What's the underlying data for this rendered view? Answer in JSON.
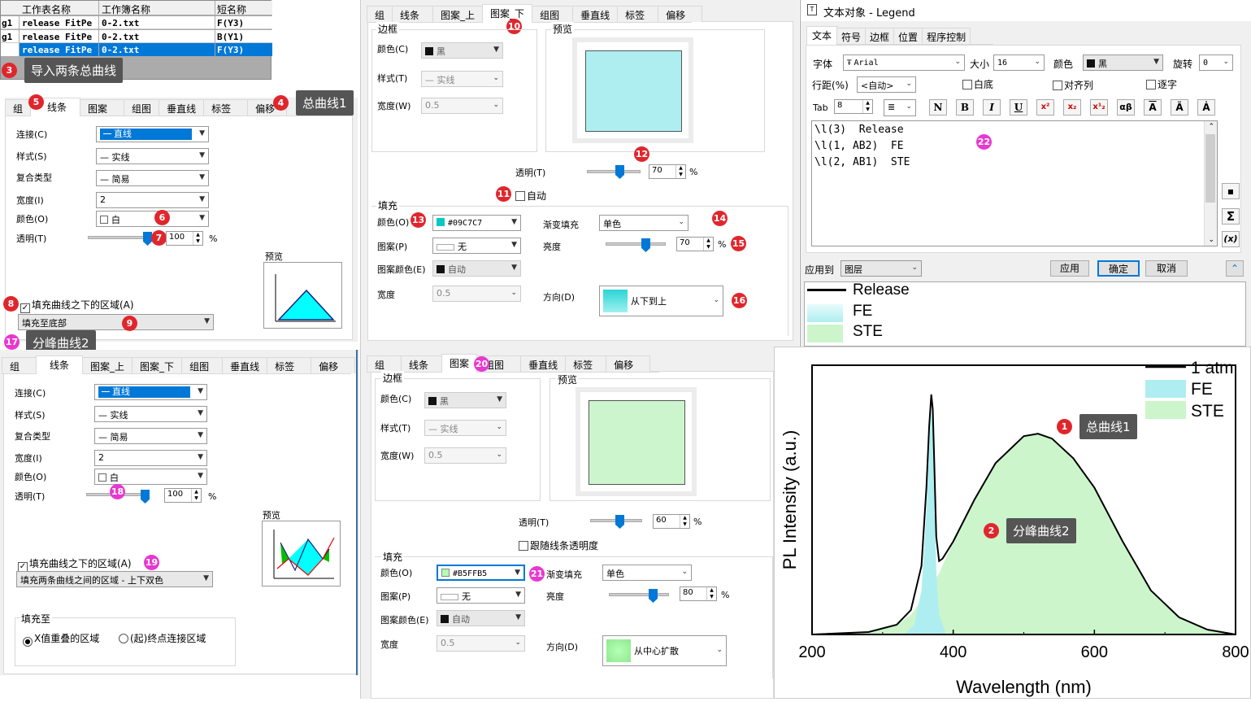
{
  "worksheet_table": {
    "headers": [
      "工作表名称",
      "工作簿名称",
      "短名称"
    ],
    "rows": [
      {
        "prefix": "g1",
        "sheet": "release FitPe",
        "book": "0-2.txt",
        "short": "F(Y3)"
      },
      {
        "prefix": "g1",
        "sheet": "release FitPe",
        "book": "0-2.txt",
        "short": "B(Y1)"
      },
      {
        "prefix": "",
        "sheet": "release FitPe",
        "book": "0-2.txt",
        "short": "F(Y3)"
      }
    ]
  },
  "annotations": {
    "a1": "总曲线1",
    "a2": "分峰曲线2",
    "a3": "导入两条总曲线",
    "a4": "总曲线1",
    "a17": "分峰曲线2"
  },
  "badges": [
    "1",
    "2",
    "3",
    "4",
    "5",
    "6",
    "7",
    "8",
    "9",
    "10",
    "11",
    "12",
    "13",
    "14",
    "15",
    "16",
    "17",
    "18",
    "19",
    "20",
    "21",
    "22"
  ],
  "line_panel_top": {
    "tabs": [
      "组",
      "线条",
      "图案",
      "组图",
      "垂直线",
      "标签",
      "偏移"
    ],
    "connect_label": "连接(C)",
    "connect_value": "直线",
    "style_label": "样式(S)",
    "style_value": "实线",
    "compound_label": "复合类型",
    "compound_value": "简易",
    "width_label": "宽度(I)",
    "width_value": "2",
    "color_label": "颜色(O)",
    "color_value": "白",
    "trans_label": "透明(T)",
    "trans_value": "100",
    "pct": "%",
    "preview_label": "预览",
    "fill_check": "填充曲线之下的区域(A)",
    "fill_combo": "填充至底部"
  },
  "line_panel_bottom": {
    "tabs": [
      "组",
      "线条",
      "图案_上",
      "图案_下",
      "组图",
      "垂直线",
      "标签",
      "偏移"
    ],
    "connect_label": "连接(C)",
    "connect_value": "直线",
    "style_label": "样式(S)",
    "style_value": "实线",
    "compound_label": "复合类型",
    "compound_value": "简易",
    "width_label": "宽度(I)",
    "width_value": "2",
    "color_label": "颜色(O)",
    "color_value": "白",
    "trans_label": "透明(T)",
    "trans_value": "100",
    "pct": "%",
    "preview_label": "预览",
    "fill_check": "填充曲线之下的区域(A)",
    "fill_combo": "填充两条曲线之间的区域 - 上下双色",
    "fill_to_label": "填充至",
    "radio1": "X值重叠的区域",
    "radio2": "(起)终点连接区域"
  },
  "pattern_panel_top": {
    "tabs": [
      "组",
      "线条",
      "图案_上",
      "图案_下",
      "组图",
      "垂直线",
      "标签",
      "偏移"
    ],
    "border_label": "边框",
    "color_label": "颜色(C)",
    "color_value": "黑",
    "style_label": "样式(T)",
    "style_value": "实线",
    "width_label": "宽度(W)",
    "width_value": "0.5",
    "preview_label": "预览",
    "trans_label": "透明(T)",
    "trans_value": "70",
    "pct": "%",
    "auto_label": "自动",
    "fill_label": "填充",
    "fcolor_label": "颜色(O)",
    "fcolor_value": "#09C7C7",
    "gradient_label": "渐变填充",
    "gradient_value": "单色",
    "pattern_label": "图案(P)",
    "pattern_value": "无",
    "brightness_label": "亮度",
    "brightness_value": "70",
    "pcolor_label": "图案颜色(E)",
    "pcolor_value": "自动",
    "pwidth_label": "宽度",
    "pwidth_value": "0.5",
    "dir_label": "方向(D)",
    "dir_value": "从下到上",
    "fill_hex": "#aeeef0"
  },
  "pattern_panel_bottom": {
    "tabs": [
      "组",
      "线条",
      "图案",
      "组图",
      "垂直线",
      "标签",
      "偏移"
    ],
    "border_label": "边框",
    "color_label": "颜色(C)",
    "color_value": "黑",
    "style_label": "样式(T)",
    "style_value": "实线",
    "width_label": "宽度(W)",
    "width_value": "0.5",
    "preview_label": "预览",
    "trans_label": "透明(T)",
    "trans_value": "60",
    "pct": "%",
    "follow_label": "跟随线条透明度",
    "fill_label": "填充",
    "fcolor_label": "颜色(O)",
    "fcolor_value": "#B5FFB5",
    "gradient_label": "渐变填充",
    "gradient_value": "单色",
    "pattern_label": "图案(P)",
    "pattern_value": "无",
    "brightness_label": "亮度",
    "brightness_value": "80",
    "pcolor_label": "图案颜色(E)",
    "pcolor_value": "自动",
    "pwidth_label": "宽度",
    "pwidth_value": "0.5",
    "dir_label": "方向(D)",
    "dir_value": "从中心扩散",
    "fill_hex": "#cdf5cd"
  },
  "legend_dialog": {
    "title": "文本对象 - Legend",
    "tabs": [
      "文本",
      "符号",
      "边框",
      "位置",
      "程序控制"
    ],
    "font_label": "字体",
    "font_value": "Arial",
    "size_label": "大小",
    "size_value": "16",
    "color_label": "颜色",
    "color_value": "黑",
    "rotate_label": "旋转",
    "rotate_value": "0",
    "linespace_label": "行距(%)",
    "linespace_value": "<自动>",
    "white_bg": "白底",
    "align": "对齐列",
    "verbatim": "逐字",
    "tab_label": "Tab",
    "tab_value": "8",
    "format_buttons": [
      "N",
      "B",
      "I",
      "U",
      "x²",
      "x₂",
      "x¹₂",
      "αβ",
      "A",
      "Ã",
      "Ȧ"
    ],
    "text_lines": [
      "\\l(3)  Release",
      "\\l(1, AB2)  FE",
      "\\l(2, AB1)  STE"
    ],
    "side_buttons": [
      "▪",
      "Σ",
      "(x)"
    ],
    "apply_label": "应用到",
    "apply_value": "图层",
    "btn_apply": "应用",
    "btn_ok": "确定",
    "btn_cancel": "取消",
    "legend_preview": [
      "Release",
      "FE",
      "STE"
    ]
  },
  "colors": {
    "fe": "#aeeef0",
    "ste": "#ccf5cc",
    "accent": "#0078d7",
    "badge_red": "#e0262d",
    "badge_magenta": "#e838d0"
  },
  "chart_data": {
    "type": "area",
    "xlabel": "Wavelength (nm)",
    "ylabel": "PL Intensity (a.u.)",
    "xlim": [
      200,
      800
    ],
    "x_ticks": [
      "200",
      "400",
      "600",
      "800"
    ],
    "legend": [
      "1 atm",
      "FE",
      "STE"
    ],
    "legend_position": "top-right",
    "series": [
      {
        "name": "1 atm",
        "kind": "line",
        "x": [
          200,
          280,
          320,
          340,
          355,
          362,
          366,
          369,
          371,
          373,
          376,
          380,
          385,
          400,
          430,
          460,
          500,
          520,
          540,
          570,
          600,
          640,
          680,
          720,
          760,
          800
        ],
        "y": [
          0.0,
          0.01,
          0.04,
          0.1,
          0.28,
          0.6,
          0.85,
          0.98,
          0.92,
          0.72,
          0.4,
          0.3,
          0.31,
          0.38,
          0.55,
          0.7,
          0.81,
          0.82,
          0.8,
          0.72,
          0.6,
          0.38,
          0.18,
          0.07,
          0.02,
          0.0
        ]
      },
      {
        "name": "FE",
        "kind": "area",
        "x": [
          330,
          345,
          355,
          362,
          366,
          369,
          371,
          373,
          376,
          380,
          390
        ],
        "y": [
          0.0,
          0.04,
          0.18,
          0.5,
          0.76,
          0.92,
          0.86,
          0.62,
          0.26,
          0.08,
          0.0
        ]
      },
      {
        "name": "STE",
        "kind": "area",
        "x": [
          200,
          280,
          320,
          340,
          360,
          380,
          400,
          430,
          460,
          500,
          520,
          540,
          570,
          600,
          640,
          680,
          720,
          760,
          800
        ],
        "y": [
          0.0,
          0.01,
          0.04,
          0.08,
          0.16,
          0.25,
          0.38,
          0.55,
          0.7,
          0.81,
          0.82,
          0.8,
          0.72,
          0.6,
          0.38,
          0.18,
          0.07,
          0.02,
          0.0
        ]
      }
    ]
  }
}
